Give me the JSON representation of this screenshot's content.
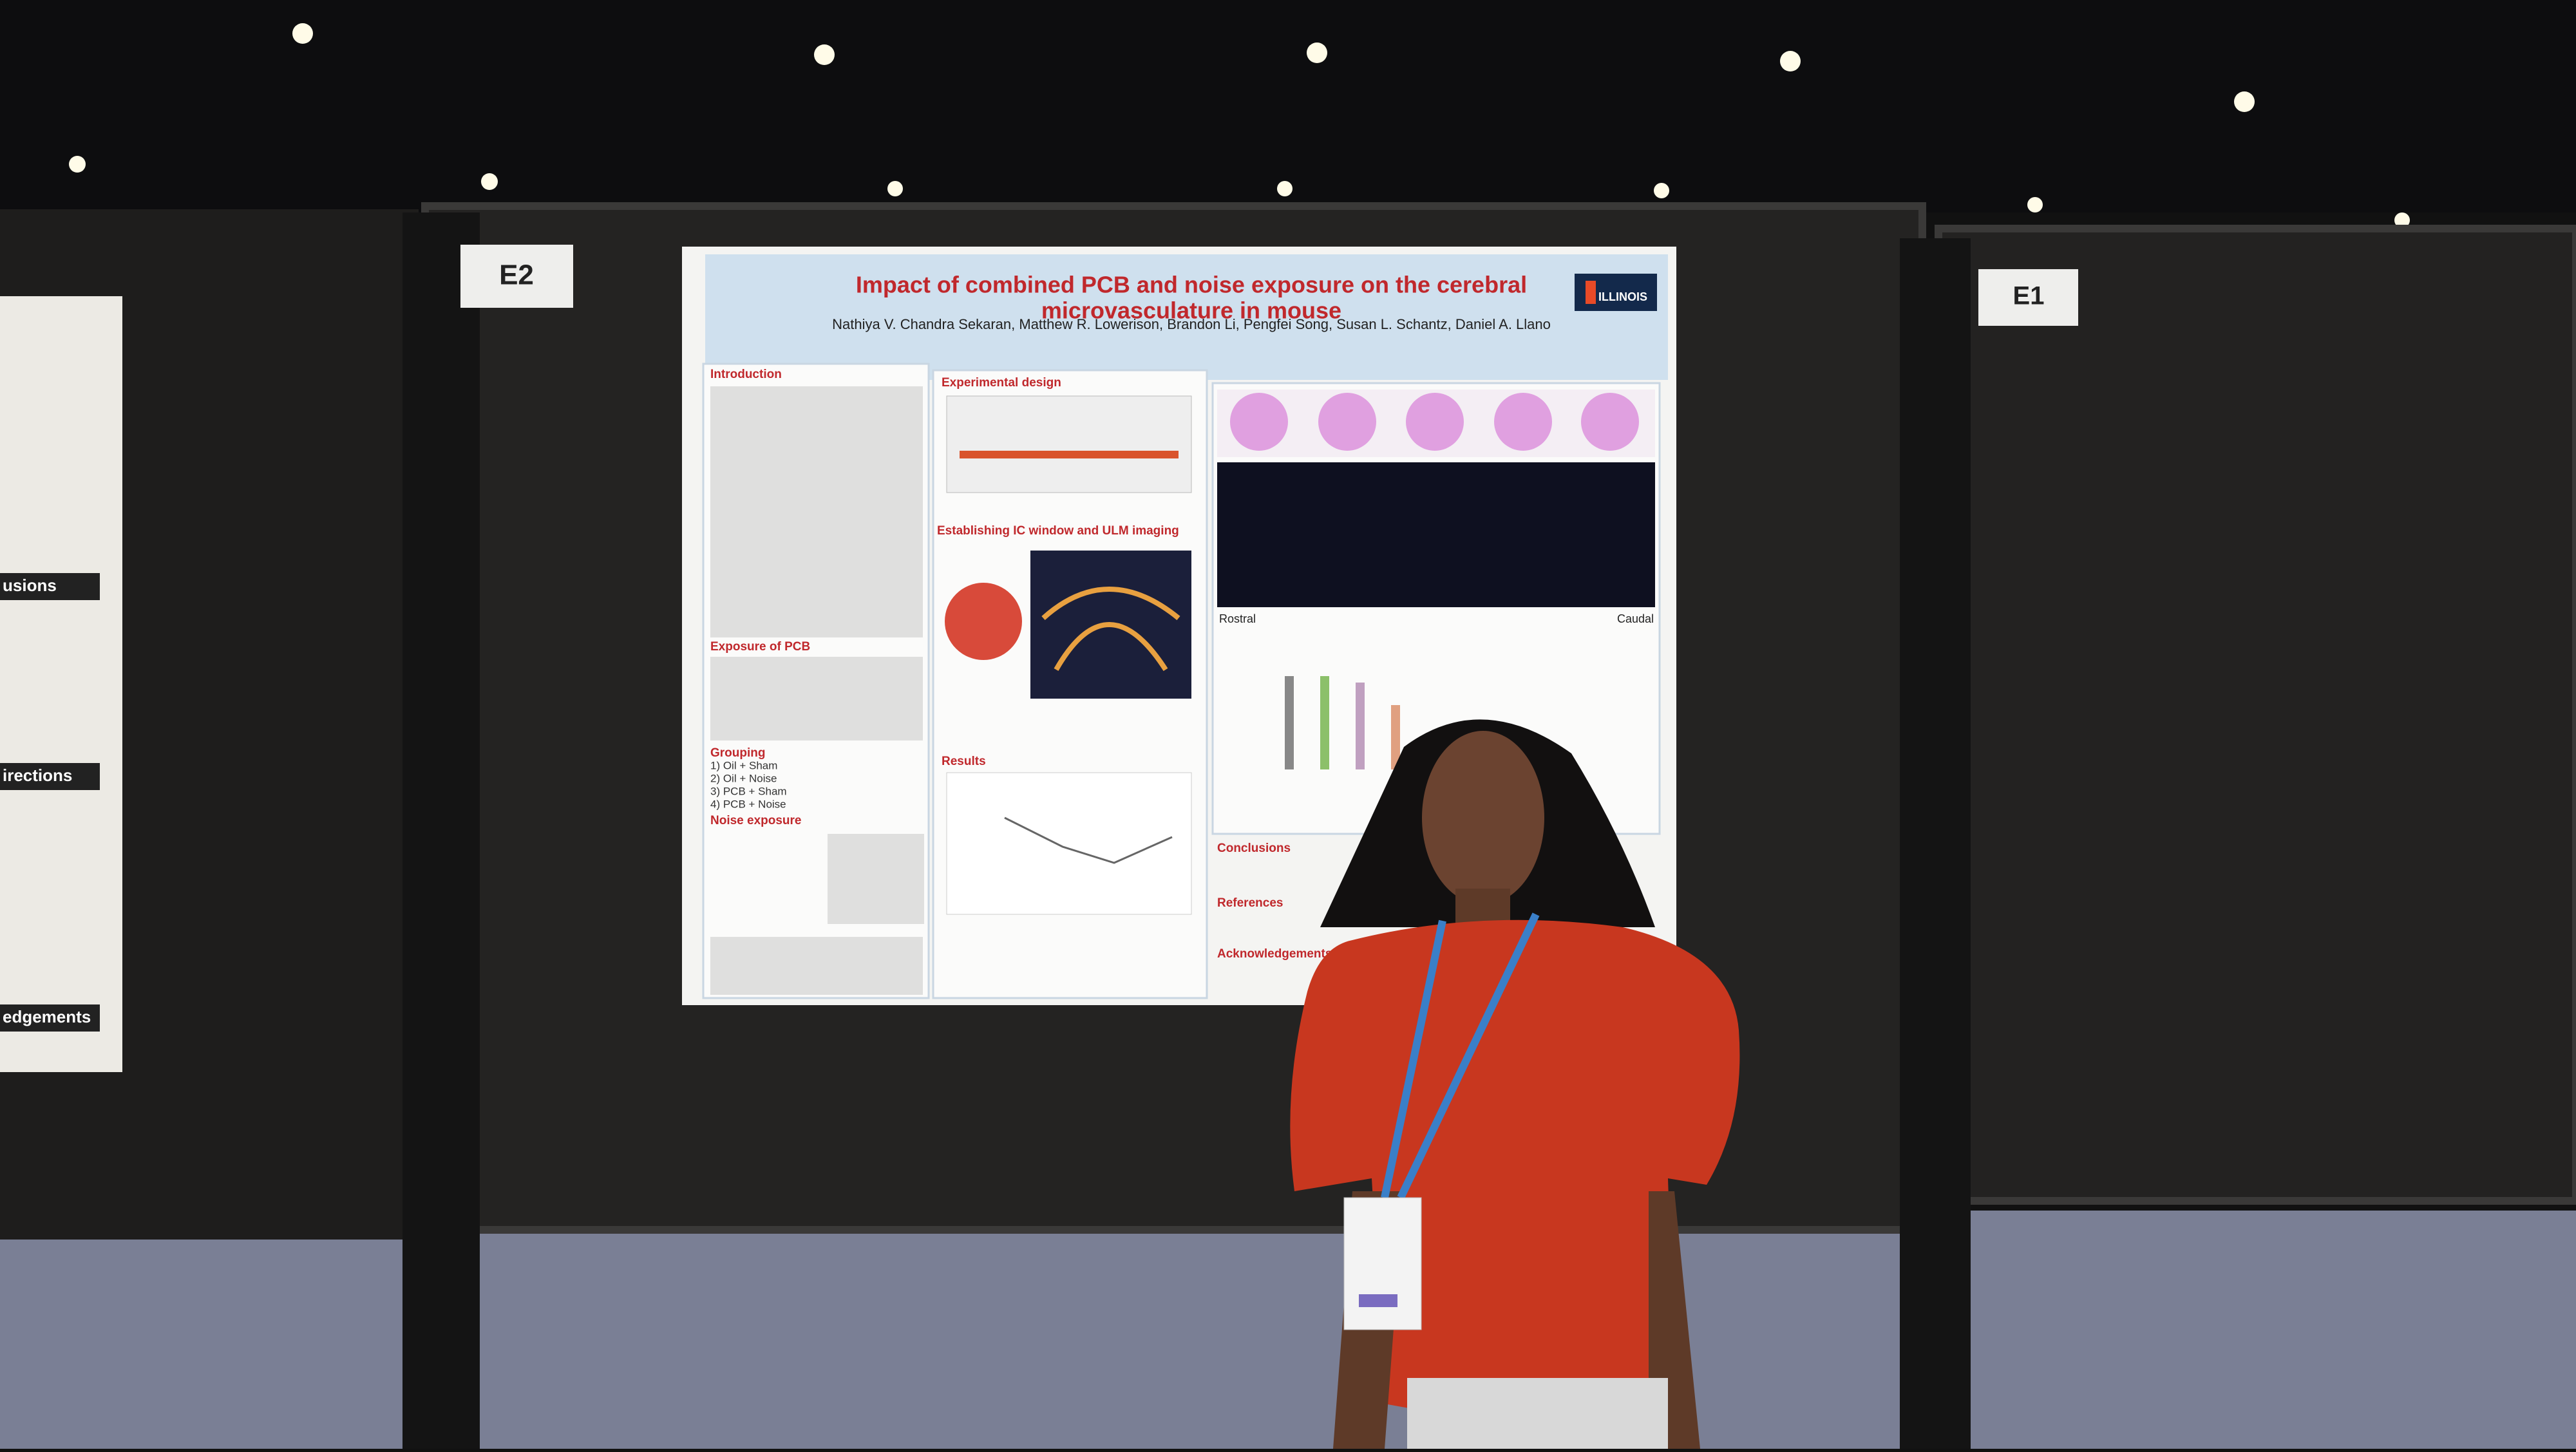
{
  "booths": {
    "left": "E2",
    "right": "E1"
  },
  "poster": {
    "title_line1": "Impact of combined PCB and noise exposure on the cerebral",
    "title_line2": "microvasculature in mouse",
    "authors": "Nathiya V. Chandra Sekaran, Matthew R. Lowerison, Brandon Li, Pengfei Song, Susan L. Schantz, Daniel A. Llano",
    "logo": "ILLINOIS",
    "sections": [
      "Introduction",
      "Exposure of PCB",
      "Grouping",
      "Noise exposure",
      "Experimental design",
      "Establishing IC window and ULM imaging",
      "Results",
      "Conclusions",
      "References",
      "Acknowledgements"
    ],
    "axis_labels": {
      "rostral": "Rostral",
      "caudal": "Caudal"
    },
    "groups": [
      "1) Oil + Sham",
      "2) Oil + Noise",
      "3) PCB + Sham",
      "4) PCB + Noise"
    ]
  },
  "side_poster": {
    "sections": [
      "usions",
      "irections",
      "edgements"
    ]
  }
}
